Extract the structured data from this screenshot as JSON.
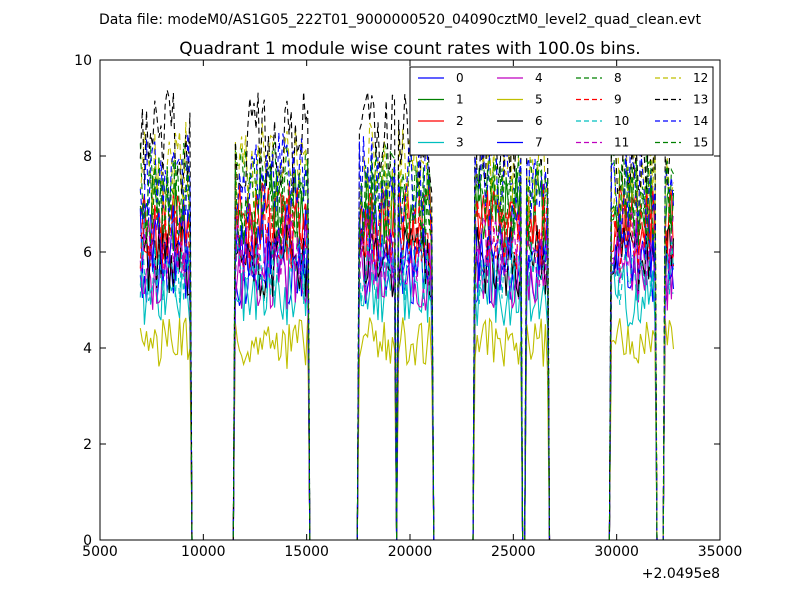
{
  "figure": {
    "suptitle": "Data file: modeM0/AS1G05_222T01_9000000520_04090cztM0_level2_quad_clean.evt"
  },
  "chart_data": {
    "type": "line",
    "title": "Quadrant 1 module wise count rates with 100.0s bins.",
    "xlabel": "",
    "ylabel": "",
    "xlim": [
      5000,
      35000
    ],
    "ylim": [
      0,
      10
    ],
    "x_offset_label": "+2.0495e8",
    "xticks": [
      "5000",
      "10000",
      "15000",
      "20000",
      "25000",
      "30000",
      "35000"
    ],
    "yticks": [
      "0",
      "2",
      "4",
      "6",
      "8",
      "10"
    ],
    "grid": false,
    "legend_placement": "upper-right",
    "legend_columns": 4,
    "on_intervals": [
      [
        6950,
        9350
      ],
      [
        11500,
        13050
      ],
      [
        13150,
        15050
      ],
      [
        17500,
        19250
      ],
      [
        19450,
        21100
      ],
      [
        23100,
        25350
      ],
      [
        25650,
        26700
      ],
      [
        29750,
        31850
      ],
      [
        32300,
        32750
      ]
    ],
    "series": [
      {
        "name": "0",
        "color": "#0000ff",
        "style": "solid",
        "level": 5.6
      },
      {
        "name": "1",
        "color": "#008000",
        "style": "solid",
        "level": 6.9
      },
      {
        "name": "2",
        "color": "#ff0000",
        "style": "solid",
        "level": 6.6
      },
      {
        "name": "3",
        "color": "#00bfbf",
        "style": "solid",
        "level": 5.1
      },
      {
        "name": "4",
        "color": "#bf00bf",
        "style": "solid",
        "level": 5.5
      },
      {
        "name": "5",
        "color": "#bfbf00",
        "style": "solid",
        "level": 4.1
      },
      {
        "name": "6",
        "color": "#000000",
        "style": "solid",
        "level": 5.8
      },
      {
        "name": "7",
        "color": "#0000ff",
        "style": "solid",
        "level": 6.2
      },
      {
        "name": "8",
        "color": "#008000",
        "style": "dashed",
        "level": 7.3
      },
      {
        "name": "9",
        "color": "#ff0000",
        "style": "dashed",
        "level": 6.4
      },
      {
        "name": "10",
        "color": "#00bfbf",
        "style": "dashed",
        "level": 5.6
      },
      {
        "name": "11",
        "color": "#bf00bf",
        "style": "dashed",
        "level": 6.1
      },
      {
        "name": "12",
        "color": "#bfbf00",
        "style": "dashed",
        "level": 7.7
      },
      {
        "name": "13",
        "color": "#000000",
        "style": "dashed",
        "level": 8.3
      },
      {
        "name": "14",
        "color": "#0000ff",
        "style": "dashed",
        "level": 7.5
      },
      {
        "name": "15",
        "color": "#008000",
        "style": "dashed",
        "level": 7.0
      }
    ]
  }
}
